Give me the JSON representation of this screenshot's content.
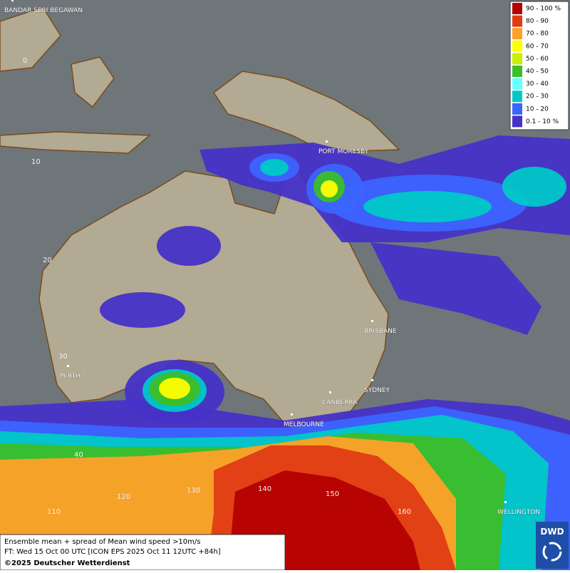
{
  "map": {
    "places": [
      "BANDAR SERI BEGAWAN",
      "PORT MORESBY",
      "BRISBANE",
      "PERTH",
      "SYDNEY",
      "CANBERRA",
      "MELBOURNE",
      "WELLINGTON"
    ],
    "grid_labels": [
      "0",
      "10",
      "20",
      "30",
      "40",
      "110",
      "120",
      "130",
      "140",
      "150",
      "160"
    ]
  },
  "legend": [
    {
      "label": "90 - 100 %",
      "color": "#b40000"
    },
    {
      "label": "80 - 90",
      "color": "#e03c14"
    },
    {
      "label": "70 - 80",
      "color": "#ffa028"
    },
    {
      "label": "60 - 70",
      "color": "#ffff00"
    },
    {
      "label": "50 - 60",
      "color": "#c8f000"
    },
    {
      "label": "40 - 50",
      "color": "#3cbe28"
    },
    {
      "label": "30 - 40",
      "color": "#64ffff"
    },
    {
      "label": "20 - 30",
      "color": "#00c8c8"
    },
    {
      "label": "10 - 20",
      "color": "#3c64ff"
    },
    {
      "label": "0.1 - 10 %",
      "color": "#4632c8"
    }
  ],
  "footer": {
    "line1": "Ensemble mean + spread of Mean wind speed >10m/s",
    "line2": "FT: Wed 15 Oct 00 UTC [ICON EPS 2025 Oct 11 12UTC +84h]",
    "line3": "©2025 Deutscher Wetterdienst"
  },
  "logo": "DWD"
}
